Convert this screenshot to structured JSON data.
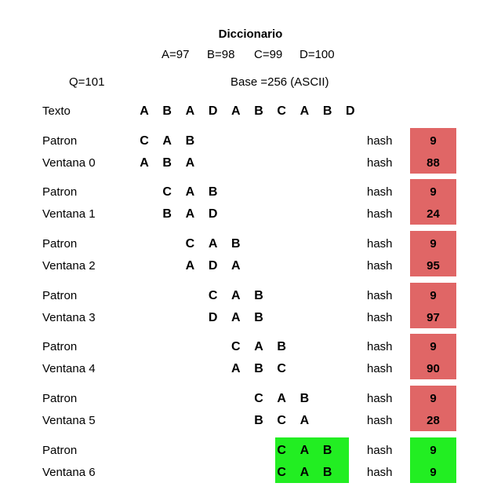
{
  "header": {
    "title": "Diccionario",
    "mapping": [
      "A=97",
      "B=98",
      "C=99",
      "D=100"
    ],
    "q": "Q=101",
    "base": "Base =256 (ASCII)"
  },
  "text_row": {
    "label": "Texto",
    "chars": [
      "A",
      "B",
      "A",
      "D",
      "A",
      "B",
      "C",
      "A",
      "B",
      "D"
    ]
  },
  "hash_label": "hash",
  "colors": {
    "mismatch": "#e06666",
    "match": "#22ee22"
  },
  "windows": [
    {
      "pattern_label": "Patron",
      "pattern": [
        "C",
        "A",
        "B"
      ],
      "window_label": "Ventana 0",
      "window": [
        "A",
        "B",
        "A"
      ],
      "offset": 0,
      "pattern_hash": "9",
      "window_hash": "88",
      "match": false
    },
    {
      "pattern_label": "Patron",
      "pattern": [
        "C",
        "A",
        "B"
      ],
      "window_label": "Ventana 1",
      "window": [
        "B",
        "A",
        "D"
      ],
      "offset": 1,
      "pattern_hash": "9",
      "window_hash": "24",
      "match": false
    },
    {
      "pattern_label": "Patron",
      "pattern": [
        "C",
        "A",
        "B"
      ],
      "window_label": "Ventana 2",
      "window": [
        "A",
        "D",
        "A"
      ],
      "offset": 2,
      "pattern_hash": "9",
      "window_hash": "95",
      "match": false
    },
    {
      "pattern_label": "Patron",
      "pattern": [
        "C",
        "A",
        "B"
      ],
      "window_label": "Ventana 3",
      "window": [
        "D",
        "A",
        "B"
      ],
      "offset": 3,
      "pattern_hash": "9",
      "window_hash": "97",
      "match": false
    },
    {
      "pattern_label": "Patron",
      "pattern": [
        "C",
        "A",
        "B"
      ],
      "window_label": "Ventana 4",
      "window": [
        "A",
        "B",
        "C"
      ],
      "offset": 4,
      "pattern_hash": "9",
      "window_hash": "90",
      "match": false
    },
    {
      "pattern_label": "Patron",
      "pattern": [
        "C",
        "A",
        "B"
      ],
      "window_label": "Ventana 5",
      "window": [
        "B",
        "C",
        "A"
      ],
      "offset": 5,
      "pattern_hash": "9",
      "window_hash": "28",
      "match": false
    },
    {
      "pattern_label": "Patron",
      "pattern": [
        "C",
        "A",
        "B"
      ],
      "window_label": "Ventana 6",
      "window": [
        "C",
        "A",
        "B"
      ],
      "offset": 6,
      "pattern_hash": "9",
      "window_hash": "9",
      "match": true
    }
  ]
}
